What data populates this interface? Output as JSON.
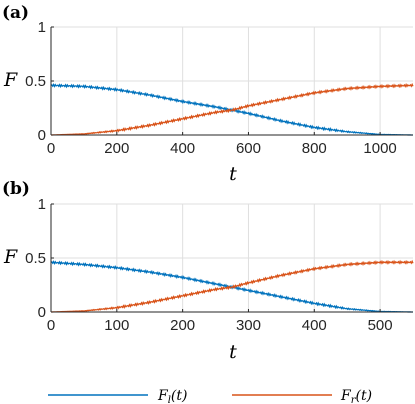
{
  "colors": {
    "left": "#0072BD",
    "right": "#D95319",
    "grid": "#dfdfdf",
    "axis": "#262626"
  },
  "legend": {
    "items": [
      {
        "label": "F_l(t)",
        "base": "F",
        "sub": "l",
        "arg": "(t)",
        "color": "#0072BD"
      },
      {
        "label": "F_r(t)",
        "base": "F",
        "sub": "r",
        "arg": "(t)",
        "color": "#D95319"
      }
    ]
  },
  "chart_data": [
    {
      "panel": "(a)",
      "type": "line",
      "xlabel": "t",
      "ylabel": "F",
      "xlim": [
        0,
        1100
      ],
      "ylim": [
        0,
        1
      ],
      "xticks": [
        0,
        200,
        400,
        600,
        800,
        1000
      ],
      "yticks": [
        0,
        0.5,
        1
      ],
      "grid": true,
      "series": [
        {
          "name": "F_l(t)",
          "color": "#0072BD",
          "x": [
            0,
            100,
            200,
            300,
            400,
            500,
            550,
            600,
            700,
            800,
            900,
            1000,
            1100
          ],
          "y": [
            0.46,
            0.45,
            0.42,
            0.37,
            0.31,
            0.26,
            0.23,
            0.2,
            0.13,
            0.07,
            0.03,
            0.005,
            0.0
          ]
        },
        {
          "name": "F_r(t)",
          "color": "#D95319",
          "x": [
            0,
            100,
            200,
            300,
            400,
            500,
            550,
            600,
            700,
            800,
            900,
            1000,
            1100
          ],
          "y": [
            0.0,
            0.01,
            0.04,
            0.09,
            0.15,
            0.21,
            0.23,
            0.27,
            0.33,
            0.39,
            0.43,
            0.45,
            0.46
          ]
        }
      ]
    },
    {
      "panel": "(b)",
      "type": "line",
      "xlabel": "t",
      "ylabel": "F",
      "xlim": [
        0,
        550
      ],
      "ylim": [
        0,
        1
      ],
      "xticks": [
        0,
        100,
        200,
        300,
        400,
        500
      ],
      "yticks": [
        0,
        0.5,
        1
      ],
      "grid": true,
      "series": [
        {
          "name": "F_l(t)",
          "color": "#0072BD",
          "x": [
            0,
            50,
            100,
            150,
            200,
            250,
            275,
            300,
            350,
            400,
            450,
            500,
            550
          ],
          "y": [
            0.46,
            0.44,
            0.41,
            0.37,
            0.32,
            0.26,
            0.23,
            0.2,
            0.14,
            0.08,
            0.03,
            0.005,
            0.0
          ]
        },
        {
          "name": "F_r(t)",
          "color": "#D95319",
          "x": [
            0,
            50,
            100,
            150,
            200,
            250,
            275,
            300,
            350,
            400,
            450,
            500,
            550
          ],
          "y": [
            0.0,
            0.01,
            0.04,
            0.09,
            0.15,
            0.21,
            0.23,
            0.27,
            0.34,
            0.4,
            0.44,
            0.46,
            0.46
          ]
        }
      ]
    }
  ]
}
